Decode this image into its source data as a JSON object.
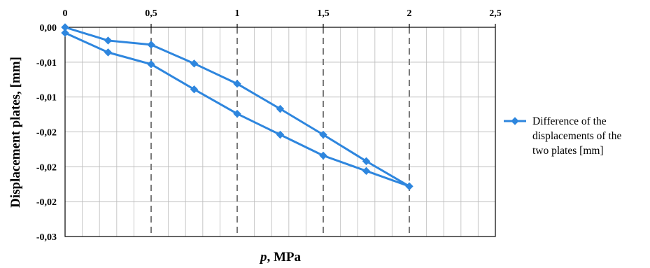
{
  "chart_data": {
    "type": "line",
    "title": "",
    "xlabel_var": "p",
    "xlabel_unit": ", MPa",
    "ylabel": "Displacement plates, [mm]",
    "x_axis_position": "top",
    "xlim": [
      0,
      2.5
    ],
    "ylim": [
      -0.03,
      0.0
    ],
    "x_ticks": [
      0,
      0.5,
      1,
      1.5,
      2,
      2.5
    ],
    "x_tick_labels": [
      "0",
      "0,5",
      "1",
      "1,5",
      "2",
      "2,5"
    ],
    "y_ticks": [
      0.0,
      -0.005,
      -0.01,
      -0.015,
      -0.02,
      -0.025,
      -0.03
    ],
    "y_tick_labels": [
      "0,00",
      "-0,01",
      "-0,01",
      "-0,02",
      "-0,02",
      "-0,02",
      "-0,03"
    ],
    "grid": {
      "major_x": "dashed",
      "minor_x": "solid",
      "y": "solid"
    },
    "legend_position": "right",
    "series": [
      {
        "name": "Difference of the displacements of the two plates [mm]",
        "color": "#2E86DE",
        "marker": "diamond",
        "x": [
          0,
          0.25,
          0.5,
          0.75,
          1.0,
          1.25,
          1.5,
          1.75,
          2.0,
          1.75,
          1.5,
          1.25,
          1.0,
          0.75,
          0.5,
          0.25,
          0
        ],
        "y": [
          0.0,
          -0.0019,
          -0.0025,
          -0.0052,
          -0.0081,
          -0.0117,
          -0.0154,
          -0.0192,
          -0.0228,
          -0.0206,
          -0.0184,
          -0.0154,
          -0.0124,
          -0.0089,
          -0.0053,
          -0.0036,
          -0.0008
        ]
      }
    ],
    "legend_lines": [
      "Difference of the",
      "displacements of the",
      "two plates [mm]"
    ]
  }
}
